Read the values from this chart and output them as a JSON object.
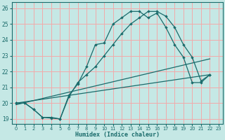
{
  "xlabel": "Humidex (Indice chaleur)",
  "bg_color": "#c5e8e5",
  "grid_color": "#f2aaaa",
  "line_color": "#1a6b6b",
  "xlim": [
    -0.5,
    23.5
  ],
  "ylim": [
    18.7,
    26.4
  ],
  "xticks": [
    0,
    1,
    2,
    3,
    4,
    5,
    6,
    7,
    8,
    9,
    10,
    11,
    12,
    13,
    14,
    15,
    16,
    17,
    18,
    19,
    20,
    21,
    22,
    23
  ],
  "yticks": [
    19,
    20,
    21,
    22,
    23,
    24,
    25,
    26
  ],
  "line1_x": [
    0,
    1,
    2,
    3,
    4,
    5,
    6,
    7,
    8,
    9,
    10,
    11,
    12,
    13,
    14,
    15,
    16,
    17,
    18,
    19,
    20,
    21,
    22
  ],
  "line1_y": [
    20.0,
    20.0,
    19.6,
    19.1,
    19.1,
    19.0,
    20.5,
    21.2,
    22.3,
    23.7,
    23.8,
    25.0,
    25.4,
    25.8,
    25.8,
    25.4,
    25.7,
    24.8,
    23.7,
    22.9,
    21.3,
    21.3,
    21.8
  ],
  "line2_x": [
    0,
    1,
    2,
    3,
    4,
    5,
    6,
    7,
    8,
    9,
    10,
    11,
    12,
    13,
    14,
    15,
    16,
    17,
    18,
    19,
    20,
    21,
    22
  ],
  "line2_y": [
    20.0,
    20.0,
    19.6,
    19.1,
    19.05,
    19.0,
    20.4,
    21.3,
    21.8,
    22.3,
    23.0,
    23.7,
    24.4,
    25.0,
    25.4,
    25.8,
    25.8,
    25.5,
    24.8,
    23.7,
    22.9,
    21.4,
    21.8
  ],
  "line3_x": [
    0,
    22
  ],
  "line3_y": [
    20.0,
    21.8
  ],
  "line4_x": [
    0,
    22
  ],
  "line4_y": [
    19.9,
    22.8
  ]
}
